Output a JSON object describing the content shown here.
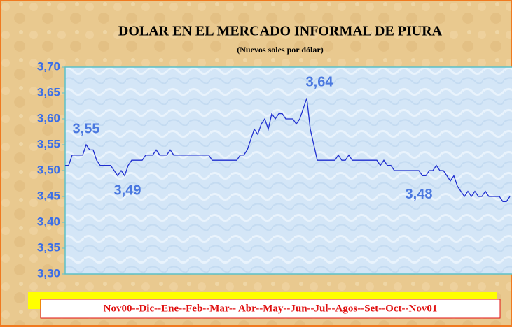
{
  "chart_data": {
    "type": "line",
    "title": "DOLAR EN EL MERCADO INFORMAL DE PIURA",
    "subtitle": "(Nuevos soles por dólar)",
    "xlabel": "Nov00--Dic--Ene--Feb--Mar-- Abr--May--Jun--Jul--Agos--Set--Oct--Nov01",
    "color": "#1f2fd0",
    "values": [
      3.51,
      3.51,
      3.53,
      3.53,
      3.53,
      3.53,
      3.55,
      3.54,
      3.54,
      3.52,
      3.51,
      3.51,
      3.51,
      3.51,
      3.5,
      3.49,
      3.5,
      3.49,
      3.51,
      3.52,
      3.52,
      3.52,
      3.52,
      3.53,
      3.53,
      3.53,
      3.54,
      3.53,
      3.53,
      3.53,
      3.54,
      3.53,
      3.53,
      3.53,
      3.53,
      3.53,
      3.53,
      3.53,
      3.53,
      3.53,
      3.53,
      3.53,
      3.52,
      3.52,
      3.52,
      3.52,
      3.52,
      3.52,
      3.52,
      3.52,
      3.53,
      3.53,
      3.54,
      3.56,
      3.58,
      3.57,
      3.59,
      3.6,
      3.58,
      3.61,
      3.6,
      3.61,
      3.61,
      3.6,
      3.6,
      3.6,
      3.59,
      3.6,
      3.62,
      3.64,
      3.58,
      3.55,
      3.52,
      3.52,
      3.52,
      3.52,
      3.52,
      3.52,
      3.53,
      3.52,
      3.52,
      3.53,
      3.52,
      3.52,
      3.52,
      3.52,
      3.52,
      3.52,
      3.52,
      3.52,
      3.51,
      3.52,
      3.51,
      3.51,
      3.5,
      3.5,
      3.5,
      3.5,
      3.5,
      3.5,
      3.5,
      3.5,
      3.49,
      3.49,
      3.5,
      3.5,
      3.51,
      3.5,
      3.5,
      3.49,
      3.48,
      3.49,
      3.47,
      3.46,
      3.45,
      3.46,
      3.45,
      3.46,
      3.45,
      3.45,
      3.46,
      3.45,
      3.45,
      3.45,
      3.45,
      3.44,
      3.44,
      3.45
    ],
    "annotations": [
      {
        "text": "3,55",
        "index": 6
      },
      {
        "text": "3,49",
        "index": 15
      },
      {
        "text": "3,64",
        "index": 69
      },
      {
        "text": "3,48",
        "index": 110
      }
    ],
    "ylim": [
      3.3,
      3.7
    ],
    "yticks": [
      {
        "value": 3.3,
        "label": "3,30"
      },
      {
        "value": 3.35,
        "label": "3,35"
      },
      {
        "value": 3.4,
        "label": "3,40"
      },
      {
        "value": 3.45,
        "label": "3,45"
      },
      {
        "value": 3.5,
        "label": "3,50"
      },
      {
        "value": 3.55,
        "label": "3,55"
      },
      {
        "value": 3.6,
        "label": "3,60"
      },
      {
        "value": 3.65,
        "label": "3,65"
      },
      {
        "value": 3.7,
        "label": "3,70"
      }
    ],
    "grid": false
  }
}
